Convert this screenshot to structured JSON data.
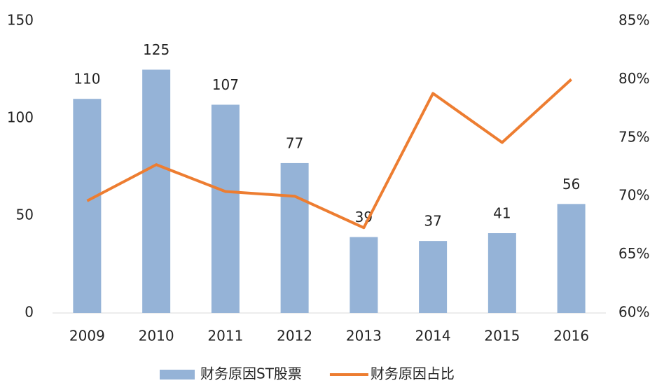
{
  "chart_data": {
    "type": "bar",
    "categories": [
      "2009",
      "2010",
      "2011",
      "2012",
      "2013",
      "2014",
      "2015",
      "2016"
    ],
    "series": [
      {
        "name": "财务原因ST股票",
        "type": "bar",
        "color": "#95b3d7",
        "values": [
          110,
          125,
          107,
          77,
          39,
          37,
          41,
          56
        ]
      },
      {
        "name": "财务原因占比",
        "type": "line",
        "axis": "y2",
        "color": "#ed7d31",
        "values": [
          69.6,
          72.7,
          70.4,
          70.0,
          67.3,
          78.8,
          74.6,
          80.0
        ]
      }
    ],
    "ylim": [
      0,
      150
    ],
    "yticks": [
      0,
      50,
      100,
      150
    ],
    "y2lim": [
      60,
      85
    ],
    "y2ticks": [
      {
        "value": 60,
        "label": "60%"
      },
      {
        "value": 65,
        "label": "65%"
      },
      {
        "value": 70,
        "label": "70%"
      },
      {
        "value": 75,
        "label": "75%"
      },
      {
        "value": 80,
        "label": "80%"
      },
      {
        "value": 85,
        "label": "85%"
      }
    ],
    "grid": false,
    "legend": "bottom"
  }
}
